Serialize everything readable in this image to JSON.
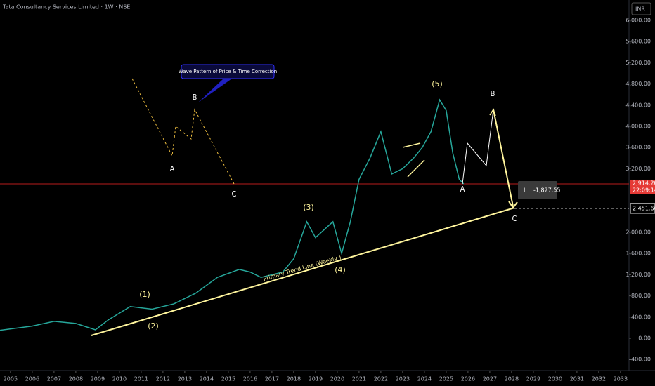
{
  "chart_data": {
    "type": "line",
    "title": "Tata Consultancy Services Limited · 1W · NSE",
    "currency": "INR",
    "color": "#26a69a",
    "x": [
      2004.5,
      2006,
      2007,
      2008,
      2008.9,
      2009.5,
      2010.5,
      2011.5,
      2012.5,
      2013.5,
      2014.5,
      2015.5,
      2016,
      2016.5,
      2017.5,
      2018,
      2018.6,
      2019,
      2019.8,
      2020.2,
      2020.6,
      2021,
      2021.5,
      2022,
      2022.5,
      2023,
      2023.5,
      2023.9,
      2024.3,
      2024.7,
      2025,
      2025.3,
      2025.6,
      2025.8
    ],
    "values": [
      150,
      230,
      320,
      280,
      160,
      350,
      600,
      550,
      650,
      850,
      1150,
      1300,
      1250,
      1150,
      1250,
      1500,
      2200,
      1900,
      2200,
      1600,
      2200,
      3000,
      3400,
      3900,
      3100,
      3200,
      3400,
      3600,
      3900,
      4500,
      4300,
      3500,
      3000,
      2914
    ],
    "xlim": [
      2004.52,
      2033.39
    ],
    "xticks": [
      2005,
      2006,
      2007,
      2008,
      2009,
      2010,
      2011,
      2012,
      2013,
      2014,
      2015,
      2016,
      2017,
      2018,
      2019,
      2020,
      2021,
      2022,
      2023,
      2024,
      2025,
      2026,
      2027,
      2028,
      2029,
      2030,
      2031,
      2032,
      2033
    ],
    "ylim": [
      -609,
      6384
    ],
    "yticks": [
      {
        "value": -400,
        "label": "-400.00"
      },
      {
        "value": 0,
        "label": "0.00"
      },
      {
        "value": 400,
        "label": "400.00"
      },
      {
        "value": 800,
        "label": "800.00"
      },
      {
        "value": 1200,
        "label": "1,200.00"
      },
      {
        "value": 1600,
        "label": "1,600.00"
      },
      {
        "value": 2000,
        "label": "2,000.00"
      },
      {
        "value": 3200,
        "label": "3,200.00"
      },
      {
        "value": 3600,
        "label": "3,600.00"
      },
      {
        "value": 4000,
        "label": "4,000.00"
      },
      {
        "value": 4400,
        "label": "4,400.00"
      },
      {
        "value": 4800,
        "label": "4,800.00"
      },
      {
        "value": 5200,
        "label": "5,200.00"
      },
      {
        "value": 5600,
        "label": "5,600.00"
      },
      {
        "value": 6000,
        "label": "6,000.00"
      }
    ],
    "last_price": {
      "value": 2914.2,
      "label": "2,914.20"
    },
    "countdown": "22:09:14",
    "target_price": {
      "value": 2451.6,
      "label": "2,451.60"
    },
    "measure": "-1,827.55",
    "callout": "Wave Pattern of Price & Time Correction",
    "trend_label": "Primary Trend Line (Weekly )",
    "wave_labels": [
      "A",
      "B",
      "C",
      "(1)",
      "(2)",
      "(3)",
      "(4)",
      "(5)",
      "A",
      "B",
      "C"
    ]
  }
}
